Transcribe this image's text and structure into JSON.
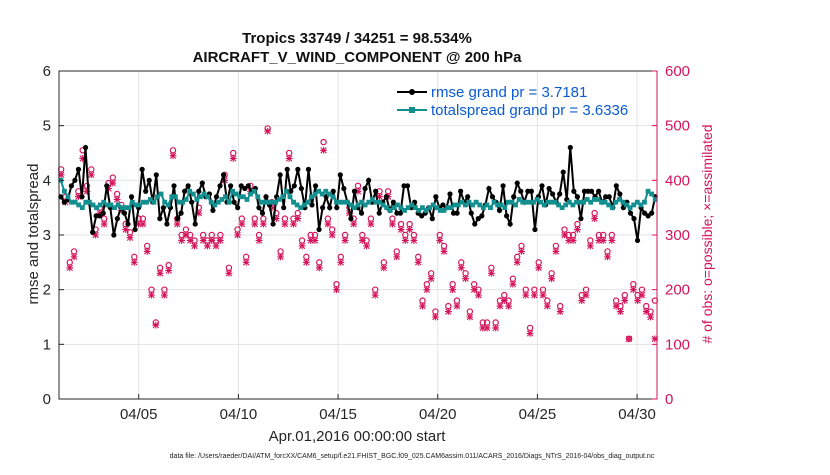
{
  "chart_data": {
    "type": "line",
    "title": "Tropics 33749 / 34251 = 98.534%",
    "subtitle": "AIRCRAFT_V_WIND_COMPONENT @ 200 hPa",
    "xlabel": "Apr.01,2016 00:00:00 start",
    "ylabel": "rmse and totalspread",
    "ylabel_right": "# of obs: o=possible; ×=assimilated",
    "footer": "data file: /Users/raeder/DAI/ATM_forcXX/CAM6_setup/f.e21.FHIST_BGC.f09_025.CAM6assim.011/ACARS_2016/Diags_NTrS_2016-04/obs_diag_output.nc",
    "x_tick_labels": [
      "04/05",
      "04/10",
      "04/15",
      "04/20",
      "04/25",
      "04/30"
    ],
    "x_tick_days": [
      5,
      10,
      15,
      20,
      25,
      30
    ],
    "xlim": [
      1,
      31
    ],
    "ylim": [
      0,
      6
    ],
    "y_ticks": [
      0,
      1,
      2,
      3,
      4,
      5,
      6
    ],
    "ylim_right": [
      0,
      600
    ],
    "y_ticks_right": [
      0,
      100,
      200,
      300,
      400,
      500,
      600
    ],
    "grid": true,
    "legend_position": "top-right",
    "series": [
      {
        "name": "rmse grand pr = 3.7181",
        "color": "#000000",
        "values": [
          3.7,
          3.6,
          3.65,
          3.9,
          4.0,
          4.2,
          3.7,
          4.6,
          3.6,
          3.05,
          3.35,
          3.35,
          3.4,
          3.9,
          3.5,
          3.0,
          3.3,
          3.5,
          3.4,
          3.2,
          3.7,
          3.1,
          3.5,
          4.2,
          3.8,
          4.0,
          3.6,
          4.1,
          3.3,
          3.5,
          3.2,
          3.5,
          3.9,
          3.3,
          3.4,
          3.8,
          3.9,
          3.6,
          3.2,
          3.8,
          3.95,
          3.7,
          3.75,
          3.45,
          3.7,
          3.9,
          4.1,
          3.6,
          3.9,
          3.6,
          3.5,
          3.9,
          3.85,
          3.9,
          3.8,
          3.85,
          3.5,
          3.4,
          3.7,
          3.55,
          3.2,
          3.7,
          4.1,
          3.5,
          4.2,
          3.8,
          3.9,
          4.2,
          3.85,
          3.5,
          4.2,
          3.55,
          3.9,
          3.1,
          3.5,
          3.7,
          3.5,
          3.8,
          3.5,
          4.1,
          3.85,
          3.6,
          3.3,
          3.8,
          3.5,
          3.4,
          3.85,
          4.0,
          3.6,
          3.8,
          3.4,
          3.6,
          3.7,
          3.45,
          3.6,
          3.4,
          3.4,
          3.9,
          3.9,
          3.5,
          3.6,
          3.4,
          3.35,
          3.4,
          3.5,
          3.3,
          3.7,
          3.5,
          3.55,
          3.5,
          3.75,
          3.4,
          3.4,
          3.8,
          3.6,
          3.7,
          3.4,
          3.2,
          3.3,
          3.35,
          3.55,
          3.85,
          3.7,
          3.6,
          3.45,
          3.9,
          3.35,
          3.2,
          3.7,
          3.95,
          3.8,
          3.6,
          3.8,
          3.8,
          3.1,
          3.7,
          3.9,
          3.55,
          3.85,
          3.75,
          3.6,
          3.75,
          4.15,
          3.65,
          4.6,
          3.8,
          3.7,
          3.3,
          3.8,
          3.8,
          3.8,
          3.7,
          3.8,
          3.6,
          3.7,
          3.7,
          3.5,
          3.9,
          3.75,
          3.5,
          3.6,
          3.4,
          3.3,
          2.9,
          3.5,
          3.4,
          3.35,
          3.4,
          3.7
        ]
      },
      {
        "name": "totalspread grand pr = 3.6336",
        "color": "#138f8f",
        "values": [
          4.0,
          3.8,
          3.7,
          3.6,
          3.6,
          3.55,
          3.5,
          3.6,
          3.6,
          3.55,
          3.5,
          3.55,
          3.6,
          3.55,
          3.55,
          3.5,
          3.55,
          3.5,
          3.5,
          3.5,
          3.6,
          3.55,
          3.55,
          3.6,
          3.6,
          3.65,
          3.6,
          3.7,
          3.75,
          3.6,
          3.55,
          3.7,
          3.7,
          3.6,
          3.6,
          3.65,
          3.8,
          3.75,
          3.65,
          3.7,
          3.75,
          3.7,
          3.6,
          3.55,
          3.6,
          3.65,
          3.7,
          3.6,
          3.8,
          3.75,
          3.7,
          3.7,
          3.65,
          3.75,
          3.8,
          3.7,
          3.6,
          3.6,
          3.6,
          3.6,
          3.6,
          3.65,
          3.7,
          3.8,
          3.7,
          3.6,
          3.55,
          3.5,
          3.55,
          3.6,
          3.7,
          3.75,
          3.8,
          3.75,
          3.8,
          3.75,
          3.7,
          3.6,
          3.6,
          3.6,
          3.6,
          3.55,
          3.5,
          3.55,
          3.6,
          3.55,
          3.6,
          3.65,
          3.6,
          3.6,
          3.55,
          3.5,
          3.45,
          3.5,
          3.55,
          3.5,
          3.45,
          3.5,
          3.55,
          3.5,
          3.45,
          3.5,
          3.45,
          3.5,
          3.55,
          3.5,
          3.45,
          3.45,
          3.5,
          3.5,
          3.55,
          3.55,
          3.6,
          3.55,
          3.6,
          3.55,
          3.6,
          3.55,
          3.5,
          3.55,
          3.5,
          3.6,
          3.55,
          3.55,
          3.5,
          3.6,
          3.6,
          3.55,
          3.65,
          3.6,
          3.6,
          3.6,
          3.6,
          3.65,
          3.6,
          3.55,
          3.6,
          3.6,
          3.6,
          3.55,
          3.5,
          3.55,
          3.6,
          3.55,
          3.6,
          3.6,
          3.6,
          3.65,
          3.6,
          3.65,
          3.65,
          3.6,
          3.6,
          3.55,
          3.5,
          3.6,
          3.65,
          3.6,
          3.55,
          3.5,
          3.55,
          3.6,
          3.55,
          3.6,
          3.8,
          3.75,
          3.65
        ]
      }
    ],
    "obs_possible": [
      420,
      370,
      250,
      270,
      380,
      455,
      390,
      420,
      310,
      350,
      330,
      395,
      405,
      375,
      355,
      320,
      305,
      260,
      330,
      330,
      280,
      200,
      140,
      240,
      200,
      245,
      455,
      330,
      300,
      310,
      300,
      290,
      350,
      300,
      290,
      300,
      290,
      300,
      410,
      240,
      450,
      310,
      330,
      260,
      390,
      330,
      300,
      330,
      495,
      360,
      340,
      270,
      330,
      450,
      330,
      340,
      290,
      260,
      300,
      300,
      250,
      470,
      330,
      310,
      210,
      260,
      300,
      350,
      330,
      390,
      300,
      290,
      330,
      200,
      380,
      250,
      380,
      330,
      270,
      320,
      300,
      320,
      300,
      260,
      180,
      210,
      230,
      160,
      300,
      280,
      170,
      210,
      180,
      250,
      230,
      160,
      210,
      200,
      140,
      140,
      240,
      140,
      180,
      190,
      180,
      220,
      260,
      280,
      200,
      130,
      200,
      250,
      200,
      180,
      230,
      280,
      170,
      310,
      300,
      300,
      320,
      190,
      200,
      290,
      340,
      300,
      300,
      270,
      300,
      180,
      170,
      190,
      110,
      210,
      190,
      200,
      170,
      160,
      180
    ],
    "obs_assimilated": [
      410,
      360,
      240,
      260,
      370,
      440,
      380,
      410,
      300,
      340,
      320,
      385,
      395,
      365,
      345,
      310,
      295,
      250,
      320,
      320,
      270,
      190,
      135,
      230,
      190,
      235,
      445,
      320,
      290,
      300,
      290,
      280,
      340,
      290,
      280,
      290,
      280,
      290,
      400,
      230,
      440,
      300,
      320,
      250,
      380,
      320,
      290,
      320,
      490,
      350,
      330,
      260,
      320,
      440,
      320,
      330,
      280,
      250,
      290,
      290,
      240,
      455,
      320,
      300,
      200,
      250,
      290,
      340,
      320,
      380,
      290,
      280,
      320,
      190,
      370,
      240,
      370,
      320,
      260,
      310,
      290,
      310,
      290,
      250,
      170,
      200,
      220,
      150,
      290,
      270,
      160,
      200,
      170,
      240,
      220,
      150,
      200,
      190,
      130,
      130,
      230,
      130,
      170,
      180,
      170,
      210,
      250,
      270,
      190,
      120,
      190,
      240,
      190,
      170,
      220,
      270,
      160,
      300,
      290,
      290,
      310,
      180,
      190,
      280,
      330,
      290,
      290,
      260,
      290,
      170,
      160,
      180,
      110,
      200,
      180,
      190,
      160,
      150,
      110
    ]
  }
}
